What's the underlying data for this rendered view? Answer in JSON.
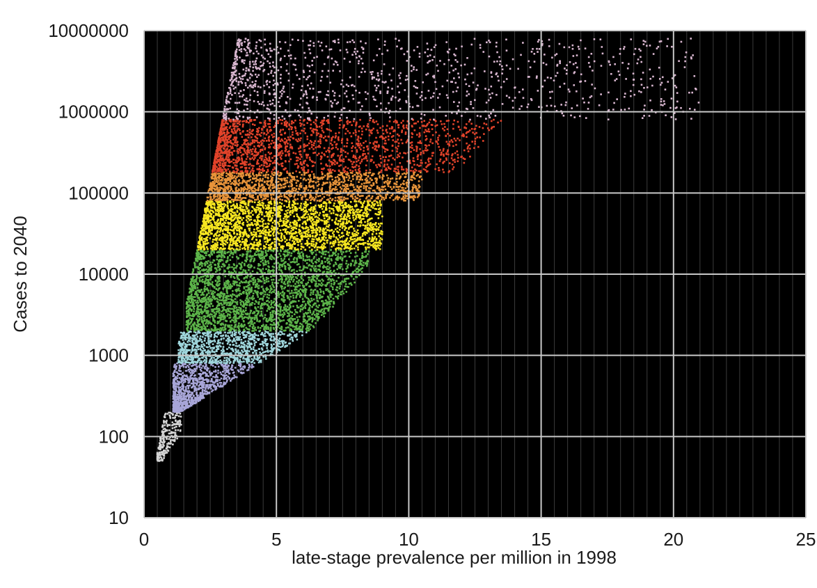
{
  "chart_data": {
    "type": "scatter",
    "xlabel": "late-stage prevalence per million in 1998",
    "ylabel": "Cases to 2040",
    "xlim": [
      0,
      25
    ],
    "ylim": [
      10,
      10000000
    ],
    "y_scale": "log",
    "x_ticks": [
      0,
      5,
      10,
      15,
      20,
      25
    ],
    "x_tick_labels": [
      "0",
      "5",
      "10",
      "15",
      "20",
      "25"
    ],
    "y_ticks": [
      10,
      100,
      1000,
      10000,
      100000,
      1000000,
      10000000
    ],
    "y_tick_labels": [
      "10",
      "100",
      "1000",
      "10000",
      "100000",
      "1000000",
      "10000000"
    ],
    "grid": true,
    "background": "#000000",
    "grid_color": "#c8c8c8",
    "bands": [
      {
        "y_range": [
          50,
          200
        ],
        "x_range": [
          0.5,
          1.4
        ],
        "density": 220,
        "color": "#d4d4d4"
      },
      {
        "y_range": [
          200,
          800
        ],
        "x_range": [
          1.1,
          5.2
        ],
        "density": 900,
        "color": "#a8a6d8"
      },
      {
        "y_range": [
          800,
          2000
        ],
        "x_range": [
          1.3,
          6.3
        ],
        "density": 900,
        "color": "#9fd6dc"
      },
      {
        "y_range": [
          2000,
          20000
        ],
        "x_range": [
          1.6,
          8.5
        ],
        "density": 2600,
        "color": "#5db54a"
      },
      {
        "y_range": [
          20000,
          80000
        ],
        "x_range": [
          2.0,
          9.0
        ],
        "density": 2200,
        "color": "#f7e721"
      },
      {
        "y_range": [
          80000,
          180000
        ],
        "x_range": [
          2.0,
          10.5
        ],
        "density": 1300,
        "color": "#e8943a"
      },
      {
        "y_range": [
          180000,
          800000
        ],
        "x_range": [
          2.0,
          13.5
        ],
        "density": 1700,
        "color": "#e2432a"
      },
      {
        "y_range": [
          800000,
          8000000
        ],
        "x_range": [
          2.5,
          21.0
        ],
        "density": 1100,
        "color": "#d8b6cf"
      }
    ]
  }
}
